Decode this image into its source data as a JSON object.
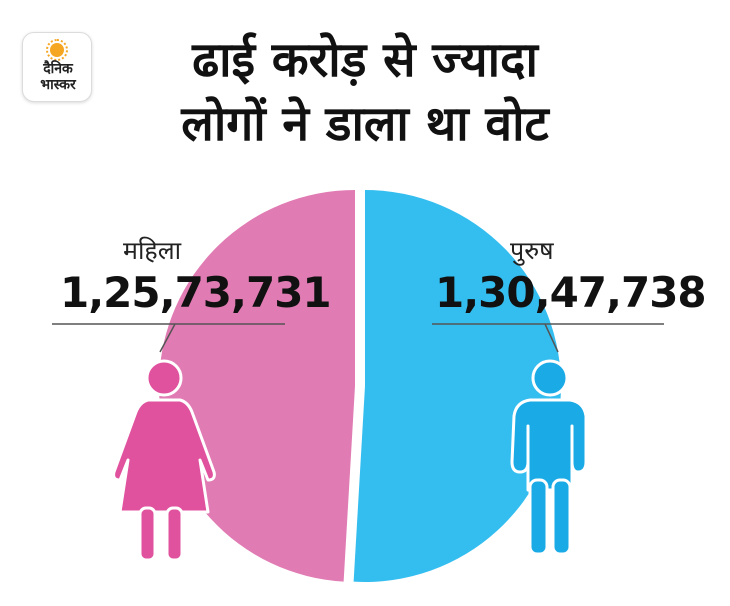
{
  "brand": {
    "logo_line1": "दैनिक",
    "logo_line2": "भास्कर"
  },
  "title": {
    "line1": "ढाई करोड़ से ज्यादा",
    "line2": "लोगों ने डाला था वोट"
  },
  "chart_data": {
    "type": "pie",
    "title": "ढाई करोड़ से ज्यादा लोगों ने डाला था वोट",
    "categories": [
      "महिला",
      "पुरुष"
    ],
    "values": [
      12573731,
      13047738
    ],
    "value_labels": [
      "1,25,73,731",
      "1,30,47,738"
    ],
    "colors": [
      "#E17BB3",
      "#34BEF0"
    ],
    "icon_colors": [
      "#E0519E",
      "#1AABE6"
    ],
    "icons": [
      "female-figure-icon",
      "male-figure-icon"
    ],
    "legend": "none"
  }
}
